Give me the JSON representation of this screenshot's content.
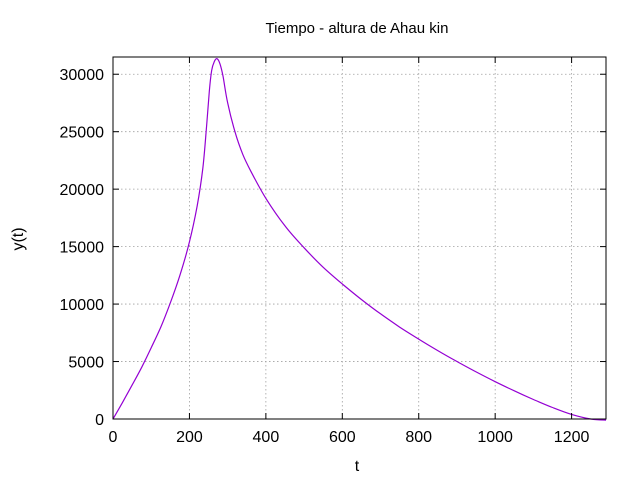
{
  "chart_data": {
    "type": "line",
    "title": "Tiempo - altura de Ahau kin",
    "xlabel": "t",
    "ylabel": "y(t)",
    "xlim": [
      0,
      1290
    ],
    "ylim": [
      0,
      31500
    ],
    "x_ticks": [
      0,
      200,
      400,
      600,
      800,
      1000,
      1200
    ],
    "y_ticks": [
      0,
      5000,
      10000,
      15000,
      20000,
      25000,
      30000
    ],
    "grid": true,
    "legend": "none",
    "series": [
      {
        "color": "#9400d3",
        "points": [
          [
            0,
            0
          ],
          [
            25,
            1450
          ],
          [
            50,
            2950
          ],
          [
            75,
            4500
          ],
          [
            100,
            6200
          ],
          [
            125,
            8000
          ],
          [
            150,
            10100
          ],
          [
            175,
            12500
          ],
          [
            200,
            15400
          ],
          [
            220,
            18500
          ],
          [
            235,
            21800
          ],
          [
            245,
            25500
          ],
          [
            252,
            28500
          ],
          [
            258,
            30300
          ],
          [
            265,
            31100
          ],
          [
            272,
            31350
          ],
          [
            280,
            30900
          ],
          [
            288,
            29800
          ],
          [
            300,
            27500
          ],
          [
            320,
            24900
          ],
          [
            340,
            23000
          ],
          [
            360,
            21600
          ],
          [
            400,
            19200
          ],
          [
            450,
            16800
          ],
          [
            500,
            14900
          ],
          [
            550,
            13200
          ],
          [
            600,
            11750
          ],
          [
            650,
            10400
          ],
          [
            700,
            9150
          ],
          [
            750,
            8000
          ],
          [
            800,
            6950
          ],
          [
            850,
            5950
          ],
          [
            900,
            5000
          ],
          [
            950,
            4100
          ],
          [
            1000,
            3250
          ],
          [
            1050,
            2450
          ],
          [
            1100,
            1700
          ],
          [
            1150,
            1000
          ],
          [
            1200,
            400
          ],
          [
            1250,
            0
          ],
          [
            1290,
            -100
          ]
        ]
      }
    ]
  }
}
